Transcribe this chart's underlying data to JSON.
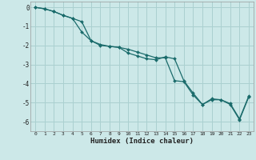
{
  "xlabel": "Humidex (Indice chaleur)",
  "bg_color": "#cce8e8",
  "grid_color": "#aad0d0",
  "line_color": "#1a6b6b",
  "xlim": [
    -0.5,
    23.5
  ],
  "ylim": [
    -6.5,
    0.3
  ],
  "xticks": [
    0,
    1,
    2,
    3,
    4,
    5,
    6,
    7,
    8,
    9,
    10,
    11,
    12,
    13,
    14,
    15,
    16,
    17,
    18,
    19,
    20,
    21,
    22,
    23
  ],
  "yticks": [
    0,
    -1,
    -2,
    -3,
    -4,
    -5,
    -6
  ],
  "line1_x": [
    0,
    1,
    2,
    3,
    4,
    5,
    6,
    7,
    8,
    9,
    10,
    11,
    12,
    13,
    14,
    15,
    16,
    17,
    18,
    19,
    20,
    21,
    22,
    23
  ],
  "line1_y": [
    0.0,
    -0.08,
    -0.22,
    -0.42,
    -0.58,
    -0.75,
    -1.75,
    -2.0,
    -2.05,
    -2.1,
    -2.2,
    -2.35,
    -2.5,
    -2.65,
    -2.65,
    -3.85,
    -3.9,
    -4.6,
    -5.1,
    -4.85,
    -4.85,
    -5.05,
    -5.85,
    -4.65
  ],
  "line2_x": [
    0,
    1,
    2,
    3,
    4,
    5,
    6,
    7,
    8,
    9,
    10,
    11,
    12,
    13,
    14,
    15,
    16,
    17,
    18,
    19,
    20,
    21,
    22,
    23
  ],
  "line2_y": [
    0.0,
    -0.08,
    -0.22,
    -0.42,
    -0.58,
    -1.3,
    -1.75,
    -1.95,
    -2.05,
    -2.1,
    -2.4,
    -2.55,
    -2.7,
    -2.75,
    -2.6,
    -2.7,
    -3.85,
    -4.5,
    -5.1,
    -4.8,
    -4.85,
    -5.1,
    -5.9,
    -4.7
  ]
}
